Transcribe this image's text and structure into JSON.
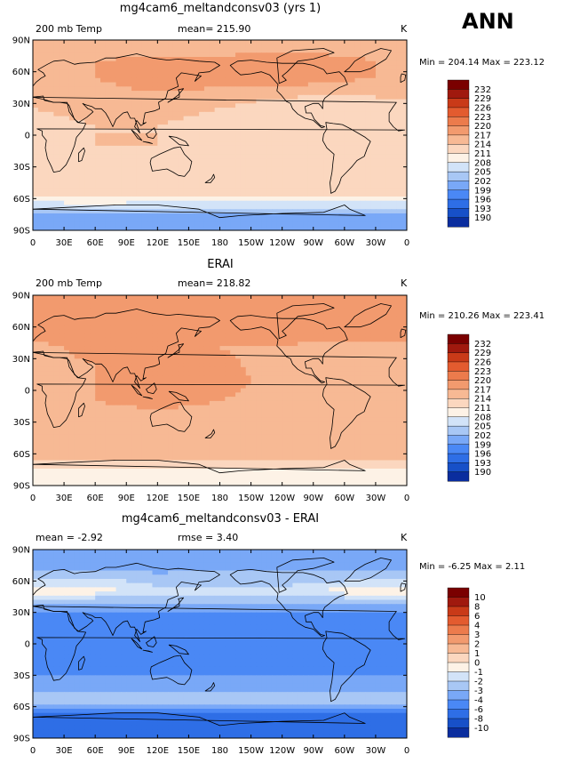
{
  "season": "ANN",
  "colors": {
    "temp_scale": [
      "#00007f",
      "#0a2d9e",
      "#1750c8",
      "#2e6ee6",
      "#4a88f5",
      "#79a8f7",
      "#a8c7f5",
      "#d2e3f8",
      "#fdf2e6",
      "#fbd7bf",
      "#f7b994",
      "#f29a6e",
      "#ec7b4c",
      "#e35b2f",
      "#c93a18",
      "#a0190e",
      "#7a0000"
    ],
    "diff_scale": [
      "#00007f",
      "#0a2d9e",
      "#1750c8",
      "#2e6ee6",
      "#4a88f5",
      "#79a8f7",
      "#a8c7f5",
      "#d2e3f8",
      "#fdf2e6",
      "#fbd7bf",
      "#f7b994",
      "#f29a6e",
      "#ec7b4c",
      "#e35b2f",
      "#c93a18",
      "#a0190e",
      "#7a0000"
    ],
    "coast": "#000000"
  },
  "chart_data": [
    {
      "type": "heatmap",
      "title": "mg4cam6_meltandconsv03 (yrs 1)",
      "left_label": "200 mb Temp",
      "stat_label": "mean= 215.90",
      "units": "K",
      "minmax": "Min = 204.14 Max = 223.12",
      "xticks": [
        "0",
        "30E",
        "60E",
        "90E",
        "120E",
        "150E",
        "180",
        "150W",
        "120W",
        "90W",
        "60W",
        "30W",
        "0"
      ],
      "yticks": [
        "90N",
        "60N",
        "30N",
        "0",
        "30S",
        "60S",
        "90S"
      ],
      "levels": [
        "232",
        "229",
        "226",
        "223",
        "220",
        "217",
        "214",
        "211",
        "208",
        "205",
        "202",
        "199",
        "196",
        "193",
        "190"
      ],
      "lat_bands": [
        {
          "lat": 90,
          "lon": [
            0,
            60,
            120,
            180,
            240,
            300,
            360
          ],
          "value": [
            217,
            217,
            217,
            217,
            217,
            217,
            217
          ]
        },
        {
          "lat": 70,
          "lon": [
            0,
            60,
            120,
            180,
            240,
            300,
            360
          ],
          "value": [
            219,
            220,
            221,
            221,
            222,
            221,
            219
          ]
        },
        {
          "lat": 55,
          "lon": [
            0,
            60,
            120,
            180,
            240,
            300,
            360
          ],
          "value": [
            219,
            220,
            222,
            222,
            223,
            221,
            219
          ]
        },
        {
          "lat": 40,
          "lon": [
            0,
            60,
            120,
            180,
            240,
            300,
            360
          ],
          "value": [
            218,
            219,
            220,
            219,
            218,
            217,
            218
          ]
        },
        {
          "lat": 25,
          "lon": [
            0,
            60,
            120,
            180,
            240,
            300,
            360
          ],
          "value": [
            217,
            218,
            218,
            217,
            215,
            215,
            216
          ]
        },
        {
          "lat": 10,
          "lon": [
            0,
            60,
            120,
            180,
            240,
            300,
            360
          ],
          "value": [
            216,
            217,
            217,
            216,
            214,
            214,
            215
          ]
        },
        {
          "lat": -10,
          "lon": [
            0,
            60,
            120,
            180,
            240,
            300,
            360
          ],
          "value": [
            216,
            217,
            217,
            216,
            214,
            214,
            215
          ]
        },
        {
          "lat": -25,
          "lon": [
            0,
            60,
            120,
            180,
            240,
            300,
            360
          ],
          "value": [
            216,
            217,
            216,
            216,
            214,
            214,
            215
          ]
        },
        {
          "lat": -40,
          "lon": [
            0,
            60,
            120,
            180,
            240,
            300,
            360
          ],
          "value": [
            216,
            217,
            216,
            216,
            215,
            215,
            216
          ]
        },
        {
          "lat": -55,
          "lon": [
            0,
            60,
            120,
            180,
            240,
            300,
            360
          ],
          "value": [
            215,
            216,
            215,
            215,
            215,
            215,
            215
          ]
        },
        {
          "lat": -65,
          "lon": [
            0,
            60,
            120,
            180,
            240,
            300,
            360
          ],
          "value": [
            210,
            211,
            210,
            210,
            210,
            210,
            210
          ]
        },
        {
          "lat": -75,
          "lon": [
            0,
            60,
            120,
            180,
            240,
            300,
            360
          ],
          "value": [
            205,
            205,
            205,
            205,
            205,
            205,
            205
          ]
        },
        {
          "lat": -90,
          "lon": [
            0,
            60,
            120,
            180,
            240,
            300,
            360
          ],
          "value": [
            203,
            203,
            203,
            203,
            203,
            203,
            203
          ]
        }
      ]
    },
    {
      "type": "heatmap",
      "title": "ERAI",
      "left_label": "200 mb Temp",
      "stat_label": "mean= 218.82",
      "units": "K",
      "minmax": "Min = 210.26 Max = 223.41",
      "xticks": [
        "0",
        "30E",
        "60E",
        "90E",
        "120E",
        "150E",
        "180",
        "150W",
        "120W",
        "90W",
        "60W",
        "30W",
        "0"
      ],
      "yticks": [
        "90N",
        "60N",
        "30N",
        "0",
        "30S",
        "60S",
        "90S"
      ],
      "levels": [
        "232",
        "229",
        "226",
        "223",
        "220",
        "217",
        "214",
        "211",
        "208",
        "205",
        "202",
        "199",
        "196",
        "193",
        "190"
      ],
      "lat_bands": [
        {
          "lat": 90,
          "lon": [
            0,
            60,
            120,
            180,
            240,
            300,
            360
          ],
          "value": [
            220,
            220,
            220,
            220,
            220,
            220,
            220
          ]
        },
        {
          "lat": 70,
          "lon": [
            0,
            60,
            120,
            180,
            240,
            300,
            360
          ],
          "value": [
            221,
            222,
            222,
            222,
            223,
            222,
            221
          ]
        },
        {
          "lat": 55,
          "lon": [
            0,
            60,
            120,
            180,
            240,
            300,
            360
          ],
          "value": [
            221,
            222,
            223,
            223,
            223,
            222,
            221
          ]
        },
        {
          "lat": 40,
          "lon": [
            0,
            60,
            120,
            180,
            240,
            300,
            360
          ],
          "value": [
            219,
            221,
            221,
            220,
            219,
            219,
            219
          ]
        },
        {
          "lat": 25,
          "lon": [
            0,
            60,
            120,
            180,
            240,
            300,
            360
          ],
          "value": [
            219,
            220,
            221,
            221,
            218,
            218,
            219
          ]
        },
        {
          "lat": 10,
          "lon": [
            0,
            60,
            120,
            180,
            240,
            300,
            360
          ],
          "value": [
            218,
            220,
            221,
            221,
            219,
            218,
            218
          ]
        },
        {
          "lat": -10,
          "lon": [
            0,
            60,
            120,
            180,
            240,
            300,
            360
          ],
          "value": [
            219,
            220,
            221,
            220,
            219,
            219,
            219
          ]
        },
        {
          "lat": -25,
          "lon": [
            0,
            60,
            120,
            180,
            240,
            300,
            360
          ],
          "value": [
            218,
            219,
            219,
            219,
            218,
            218,
            218
          ]
        },
        {
          "lat": -40,
          "lon": [
            0,
            60,
            120,
            180,
            240,
            300,
            360
          ],
          "value": [
            219,
            219,
            219,
            219,
            219,
            219,
            219
          ]
        },
        {
          "lat": -55,
          "lon": [
            0,
            60,
            120,
            180,
            240,
            300,
            360
          ],
          "value": [
            219,
            219,
            219,
            219,
            219,
            219,
            219
          ]
        },
        {
          "lat": -65,
          "lon": [
            0,
            60,
            120,
            180,
            240,
            300,
            360
          ],
          "value": [
            217,
            217,
            217,
            217,
            217,
            217,
            217
          ]
        },
        {
          "lat": -75,
          "lon": [
            0,
            60,
            120,
            180,
            240,
            300,
            360
          ],
          "value": [
            213,
            213,
            213,
            213,
            213,
            213,
            213
          ]
        },
        {
          "lat": -90,
          "lon": [
            0,
            60,
            120,
            180,
            240,
            300,
            360
          ],
          "value": [
            211,
            211,
            211,
            211,
            211,
            211,
            211
          ]
        }
      ]
    },
    {
      "type": "heatmap",
      "title": "mg4cam6_meltandconsv03 - ERAI",
      "left_label": "mean =  -2.92",
      "stat_label": "rmse =   3.40",
      "units": "K",
      "minmax": "Min =  -6.25 Max =   2.11",
      "xticks": [
        "0",
        "30E",
        "60E",
        "90E",
        "120E",
        "150E",
        "180",
        "150W",
        "120W",
        "90W",
        "60W",
        "30W",
        "0"
      ],
      "yticks": [
        "90N",
        "60N",
        "30N",
        "0",
        "30S",
        "60S",
        "90S"
      ],
      "levels": [
        "10",
        "8",
        "6",
        "4",
        "3",
        "2",
        "1",
        "0",
        "-1",
        "-2",
        "-3",
        "-4",
        "-6",
        "-8",
        "-10"
      ],
      "lat_bands": [
        {
          "lat": 90,
          "lon": [
            0,
            60,
            120,
            180,
            240,
            300,
            360
          ],
          "value": [
            -2.5,
            -2.5,
            -2.5,
            -2.5,
            -2.5,
            -2.5,
            -2.5
          ]
        },
        {
          "lat": 75,
          "lon": [
            0,
            60,
            120,
            180,
            240,
            300,
            360
          ],
          "value": [
            -2.5,
            -2.8,
            -2.5,
            -2.2,
            -2.2,
            -2.5,
            -2.5
          ]
        },
        {
          "lat": 60,
          "lon": [
            0,
            60,
            120,
            180,
            240,
            300,
            360
          ],
          "value": [
            -0.5,
            -0.5,
            -1.5,
            -1.5,
            -1.5,
            -1.0,
            -0.5
          ]
        },
        {
          "lat": 50,
          "lon": [
            0,
            60,
            120,
            180,
            240,
            300,
            360
          ],
          "value": [
            0.5,
            0.5,
            -0.5,
            -0.5,
            -0.5,
            0.5,
            0.5
          ]
        },
        {
          "lat": 40,
          "lon": [
            0,
            60,
            120,
            180,
            240,
            300,
            360
          ],
          "value": [
            -1.5,
            -2.0,
            -1.5,
            -1.5,
            -2.0,
            -2.0,
            -1.5
          ]
        },
        {
          "lat": 25,
          "lon": [
            0,
            60,
            120,
            180,
            240,
            300,
            360
          ],
          "value": [
            -3.5,
            -3.5,
            -3.5,
            -3.5,
            -3.5,
            -3.5,
            -3.5
          ]
        },
        {
          "lat": 10,
          "lon": [
            0,
            60,
            120,
            180,
            240,
            300,
            360
          ],
          "value": [
            -3.5,
            -3.8,
            -3.8,
            -3.8,
            -3.8,
            -3.5,
            -3.5
          ]
        },
        {
          "lat": -10,
          "lon": [
            0,
            60,
            120,
            180,
            240,
            300,
            360
          ],
          "value": [
            -3.5,
            -3.8,
            -3.8,
            -3.8,
            -3.5,
            -3.5,
            -3.5
          ]
        },
        {
          "lat": -30,
          "lon": [
            0,
            60,
            120,
            180,
            240,
            300,
            360
          ],
          "value": [
            -3.0,
            -3.0,
            -3.0,
            -3.0,
            -3.0,
            -3.0,
            -3.0
          ]
        },
        {
          "lat": -45,
          "lon": [
            0,
            60,
            120,
            180,
            240,
            300,
            360
          ],
          "value": [
            -2.0,
            -2.0,
            -2.0,
            -2.0,
            -2.0,
            -2.0,
            -2.0
          ]
        },
        {
          "lat": -55,
          "lon": [
            0,
            60,
            120,
            180,
            240,
            300,
            360
          ],
          "value": [
            -1.5,
            -1.5,
            -1.2,
            -1.2,
            -1.2,
            -1.5,
            -1.5
          ]
        },
        {
          "lat": -65,
          "lon": [
            0,
            60,
            120,
            180,
            240,
            300,
            360
          ],
          "value": [
            -4.0,
            -4.0,
            -4.0,
            -4.0,
            -4.0,
            -4.0,
            -4.0
          ]
        },
        {
          "lat": -75,
          "lon": [
            0,
            60,
            120,
            180,
            240,
            300,
            360
          ],
          "value": [
            -5.5,
            -5.5,
            -5.5,
            -5.5,
            -5.5,
            -5.5,
            -5.5
          ]
        },
        {
          "lat": -90,
          "lon": [
            0,
            60,
            120,
            180,
            240,
            300,
            360
          ],
          "value": [
            -6.0,
            -6.0,
            -6.0,
            -6.0,
            -6.0,
            -6.0,
            -6.0
          ]
        }
      ]
    }
  ]
}
